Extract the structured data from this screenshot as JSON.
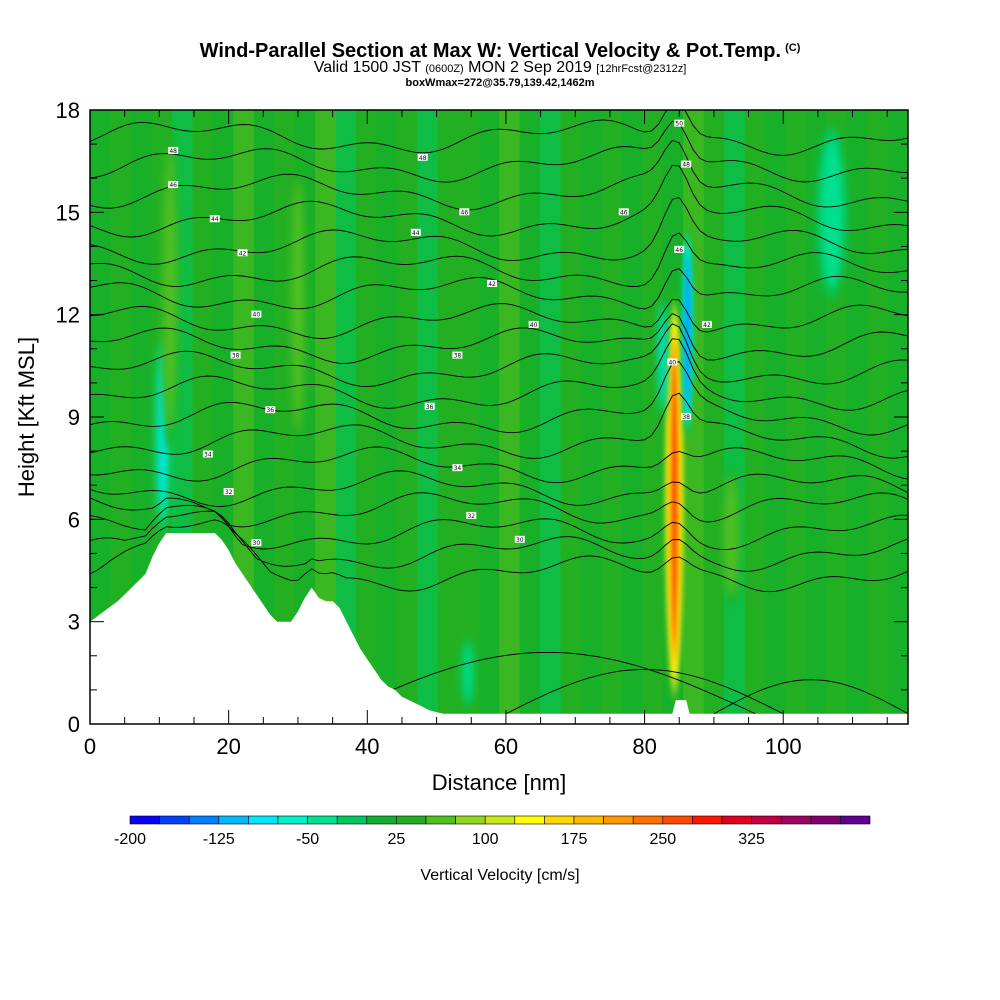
{
  "header": {
    "title": "Wind-Parallel Section at Max W: Vertical Velocity & Pot.Temp.",
    "title_mark": "(C)",
    "valid_prefix": "Valid 1500 JST",
    "valid_utc": "(0600Z)",
    "valid_date": "MON 2 Sep 2019",
    "forecast": "[12hrFcst@2312z]",
    "box_info": "boxWmax=272@35.79,139.42,1462m"
  },
  "chart_data": {
    "type": "heatmap",
    "xlabel": "Distance [nm]",
    "ylabel": "Height [Kft MSL]",
    "xlim": [
      0,
      118
    ],
    "ylim": [
      0,
      18
    ],
    "x_ticks": [
      0,
      20,
      40,
      60,
      80,
      100
    ],
    "y_ticks": [
      0,
      3,
      6,
      9,
      12,
      15,
      18
    ],
    "background_color": "#22b022",
    "terrain_profile": {
      "x": [
        0,
        2,
        4,
        6,
        8,
        9,
        10,
        11,
        12,
        14,
        16,
        18,
        19,
        20,
        21,
        22,
        23,
        24,
        25,
        26,
        27,
        28,
        29,
        30,
        31,
        32,
        33,
        34,
        35,
        36,
        37,
        38,
        39,
        40,
        41,
        42,
        43,
        44,
        45,
        46,
        47,
        48,
        49,
        50,
        51,
        52,
        53,
        84,
        84.5,
        86,
        86.5,
        118
      ],
      "height_kft": [
        3.0,
        3.3,
        3.6,
        4.0,
        4.4,
        4.9,
        5.3,
        5.6,
        5.6,
        5.6,
        5.6,
        5.6,
        5.4,
        5.1,
        4.7,
        4.4,
        4.1,
        3.8,
        3.5,
        3.2,
        3.0,
        3.0,
        3.0,
        3.3,
        3.7,
        4.0,
        3.7,
        3.6,
        3.6,
        3.4,
        3.0,
        2.6,
        2.2,
        1.9,
        1.6,
        1.3,
        1.1,
        1.0,
        0.8,
        0.7,
        0.6,
        0.5,
        0.4,
        0.35,
        0.3,
        0.3,
        0.3,
        0.3,
        0.7,
        0.7,
        0.3,
        0.3
      ]
    },
    "velocity_features": [
      {
        "x": 84.3,
        "y_min": 0.5,
        "y_max": 12.7,
        "half_width_nm": 1.6,
        "peak_cms": 272,
        "label": "updraft core"
      },
      {
        "x": 86.2,
        "y_min": 8.5,
        "y_max": 14.5,
        "half_width_nm": 0.9,
        "peak_cms": -160,
        "label": "downdraft"
      },
      {
        "x": 82.6,
        "y_min": 9.0,
        "y_max": 12.5,
        "half_width_nm": 0.7,
        "peak_cms": -90,
        "label": "downdraft"
      },
      {
        "x": 10.5,
        "y_min": 5.5,
        "y_max": 11.5,
        "half_width_nm": 1.2,
        "peak_cms": -90,
        "label": "downdraft"
      },
      {
        "x": 11.5,
        "y_min": 8,
        "y_max": 17.5,
        "half_width_nm": 1.4,
        "peak_cms": 55,
        "label": "weak updraft"
      },
      {
        "x": 30,
        "y_min": 8,
        "y_max": 16.5,
        "half_width_nm": 1.3,
        "peak_cms": 55,
        "label": "weak updraft"
      },
      {
        "x": 92.5,
        "y_min": 3.5,
        "y_max": 7.5,
        "half_width_nm": 1.5,
        "peak_cms": 60,
        "label": "weak updraft"
      },
      {
        "x": 107,
        "y_min": 12.5,
        "y_max": 17.5,
        "half_width_nm": 2.2,
        "peak_cms": -55,
        "label": "weak downdraft"
      },
      {
        "x": 54.5,
        "y_min": 0.5,
        "y_max": 2.5,
        "half_width_nm": 1.0,
        "peak_cms": -45,
        "label": "weak downdraft"
      }
    ],
    "theta_contours": {
      "base_heights_kft": [
        4.4,
        5.0,
        5.6,
        6.3,
        6.9,
        7.6,
        8.3,
        9.0,
        9.7,
        10.4,
        11.1,
        11.8,
        12.6,
        13.3,
        14.0,
        14.8,
        15.6,
        16.4,
        17.2
      ],
      "labels": [
        {
          "x": 24,
          "y": 5.3,
          "text": "30"
        },
        {
          "x": 62,
          "y": 5.4,
          "text": "30"
        },
        {
          "x": 20,
          "y": 6.8,
          "text": "32"
        },
        {
          "x": 55,
          "y": 6.1,
          "text": "32"
        },
        {
          "x": 17,
          "y": 7.9,
          "text": "34"
        },
        {
          "x": 53,
          "y": 7.5,
          "text": "34"
        },
        {
          "x": 26,
          "y": 9.2,
          "text": "36"
        },
        {
          "x": 49,
          "y": 9.3,
          "text": "36"
        },
        {
          "x": 86,
          "y": 9.0,
          "text": "38"
        },
        {
          "x": 21,
          "y": 10.8,
          "text": "38"
        },
        {
          "x": 53,
          "y": 10.8,
          "text": "38"
        },
        {
          "x": 84,
          "y": 10.6,
          "text": "40"
        },
        {
          "x": 24,
          "y": 12.0,
          "text": "40"
        },
        {
          "x": 64,
          "y": 11.7,
          "text": "40"
        },
        {
          "x": 89,
          "y": 11.7,
          "text": "42"
        },
        {
          "x": 22,
          "y": 13.8,
          "text": "42"
        },
        {
          "x": 58,
          "y": 12.9,
          "text": "42"
        },
        {
          "x": 18,
          "y": 14.8,
          "text": "44"
        },
        {
          "x": 47,
          "y": 14.4,
          "text": "44"
        },
        {
          "x": 54,
          "y": 15.0,
          "text": "46"
        },
        {
          "x": 77,
          "y": 15.0,
          "text": "46"
        },
        {
          "x": 12,
          "y": 15.8,
          "text": "46"
        },
        {
          "x": 85,
          "y": 13.9,
          "text": "46"
        },
        {
          "x": 12,
          "y": 16.8,
          "text": "48"
        },
        {
          "x": 48,
          "y": 16.6,
          "text": "48"
        },
        {
          "x": 86,
          "y": 16.4,
          "text": "48"
        },
        {
          "x": 85,
          "y": 17.6,
          "text": "50"
        }
      ]
    },
    "colorbar": {
      "title": "Vertical Velocity [cm/s]",
      "tick_labels": [
        "-200",
        "-125",
        "-50",
        "25",
        "100",
        "175",
        "250",
        "325"
      ],
      "colors": [
        "#0a00f5",
        "#0040ff",
        "#0080ff",
        "#00b8ff",
        "#00e6ff",
        "#00f0c8",
        "#00e090",
        "#00c860",
        "#10b030",
        "#22b022",
        "#50c020",
        "#90d820",
        "#c8e818",
        "#ffff00",
        "#ffd800",
        "#ffb800",
        "#ff9800",
        "#ff7000",
        "#ff4800",
        "#ff1800",
        "#e00020",
        "#c00040",
        "#a00060",
        "#800070",
        "#600090"
      ]
    }
  }
}
